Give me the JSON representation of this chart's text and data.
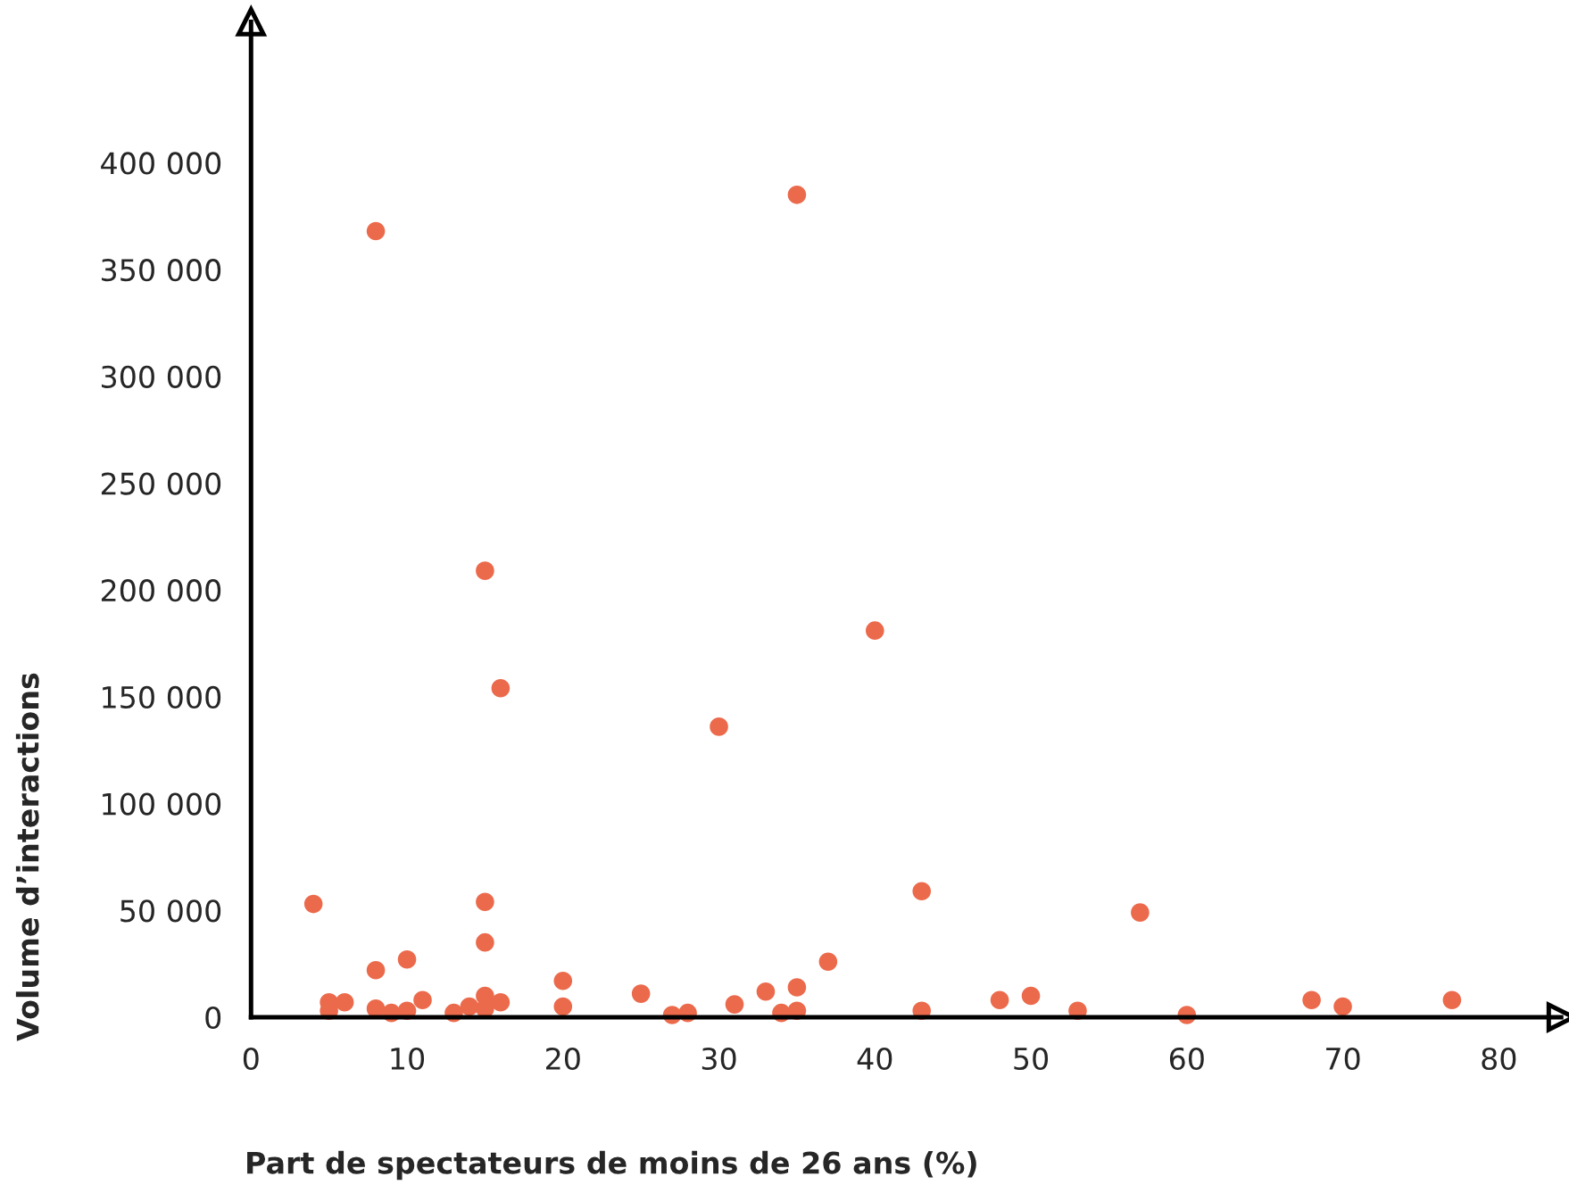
{
  "chart_data": {
    "type": "scatter",
    "xlabel": "Part de spectateurs de moins de 26 ans (%)",
    "ylabel": "Volume d’interactions",
    "series": [
      {
        "color": "#ec6a4c",
        "x": [
          4,
          8,
          35,
          15,
          16,
          30,
          40,
          15,
          15,
          10,
          8,
          5,
          5,
          6,
          8,
          9,
          10,
          11,
          13,
          14,
          15,
          15,
          16,
          20,
          20,
          25,
          27,
          28,
          31,
          33,
          34,
          35,
          35,
          37,
          43,
          43,
          48,
          50,
          53,
          57,
          60,
          68,
          70,
          77
        ],
        "values": [
          53000,
          368000,
          385000,
          209000,
          154000,
          136000,
          181000,
          54000,
          35000,
          27000,
          22000,
          7000,
          3000,
          7000,
          4000,
          2000,
          3000,
          8000,
          2000,
          5000,
          10000,
          4000,
          7000,
          17000,
          5000,
          11000,
          1000,
          2000,
          6000,
          12000,
          2000,
          14000,
          3000,
          26000,
          59000,
          3000,
          8000,
          10000,
          3000,
          49000,
          1000,
          8000,
          5000,
          8000
        ]
      }
    ],
    "xlim": [
      0,
      84
    ],
    "xticks": [
      0,
      10,
      20,
      30,
      40,
      50,
      60,
      70,
      80
    ],
    "ylim": [
      0,
      466000
    ],
    "yticks": [
      0,
      {
        "value": 50000,
        "label": "50 000"
      },
      {
        "value": 100000,
        "label": "100 000"
      },
      {
        "value": 150000,
        "label": "150 000"
      },
      {
        "value": 200000,
        "label": "200 000"
      },
      {
        "value": 250000,
        "label": "250 000"
      },
      {
        "value": 300000,
        "label": "300 000"
      },
      {
        "value": 350000,
        "label": "350 000"
      },
      {
        "value": 400000,
        "label": "400 000"
      }
    ],
    "marker": "circle",
    "grid": false,
    "legend": false
  }
}
